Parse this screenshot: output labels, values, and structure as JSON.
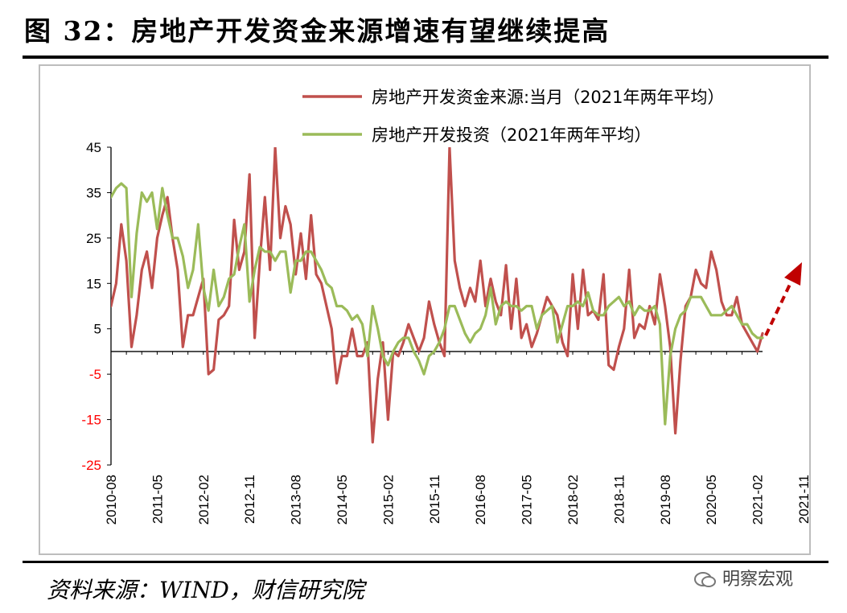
{
  "figure": {
    "title": "图 32：房地产开发资金来源增速有望继续提高",
    "source": "资料来源：WIND，财信研究院",
    "watermark": "明察宏观"
  },
  "chart_data": {
    "type": "line",
    "ylim": [
      -25,
      45
    ],
    "yticks": [
      45,
      35,
      25,
      15,
      5,
      -5,
      -15,
      -25
    ],
    "negative_tick_color": "#ff0000",
    "xticks": [
      "2010-08",
      "2011-05",
      "2012-02",
      "2012-11",
      "2013-08",
      "2014-05",
      "2015-02",
      "2015-11",
      "2016-08",
      "2017-05",
      "2018-02",
      "2018-11",
      "2019-08",
      "2020-05",
      "2021-02",
      "2021-11"
    ],
    "legend_position": "top-right",
    "grid": false,
    "series": [
      {
        "name": "房地产开发资金来源:当月（2021年两年平均）",
        "color": "#c0504d",
        "values": [
          10,
          15,
          28,
          20,
          1,
          8,
          18,
          22,
          14,
          25,
          30,
          34,
          25,
          18,
          1,
          8,
          8,
          12,
          16,
          -5,
          -4,
          7,
          8,
          10,
          29,
          18,
          22,
          39,
          3,
          20,
          34,
          18,
          45,
          25,
          32,
          28,
          17,
          26,
          16,
          30,
          17,
          15,
          10,
          5,
          -7,
          -1,
          -1,
          5,
          -1,
          -1,
          2,
          -20,
          -6,
          2,
          -15,
          0,
          -1,
          2,
          6,
          3,
          0,
          3,
          11,
          6,
          2,
          -1,
          45,
          20,
          14,
          10,
          14,
          11,
          20,
          10,
          16,
          11,
          8,
          19,
          5,
          16,
          3,
          6,
          1,
          4,
          8,
          12,
          10,
          8,
          2,
          -1,
          17,
          5,
          18,
          8,
          9,
          7,
          17,
          -3,
          -4,
          1,
          5,
          18,
          3,
          6,
          5,
          10,
          6,
          17,
          10,
          1,
          -18,
          -2,
          10,
          12,
          18,
          15,
          14,
          22,
          18,
          11,
          8,
          8,
          12,
          6,
          4,
          2,
          0,
          4
        ]
      },
      {
        "name": "房地产开发投资（2021年两年平均）",
        "color": "#9bbb59",
        "values": [
          34,
          36,
          37,
          36,
          12,
          26,
          35,
          33,
          35,
          27,
          36,
          30,
          25,
          25,
          21,
          14,
          18,
          28,
          14,
          9,
          18,
          10,
          12,
          16,
          17,
          23,
          28,
          11,
          18,
          23,
          22,
          22,
          20,
          22,
          22,
          13,
          20,
          20,
          22,
          22,
          20,
          18,
          15,
          14,
          10,
          10,
          9,
          7,
          8,
          6,
          -1,
          10,
          5,
          -1,
          -3,
          0,
          2,
          3,
          3,
          0,
          -2,
          -5,
          -1,
          0,
          2,
          5,
          10,
          10,
          7,
          4,
          2,
          4,
          5,
          8,
          14,
          6,
          10,
          11,
          10,
          10,
          9,
          10,
          10,
          5,
          8,
          9,
          10,
          2,
          6,
          10,
          10,
          11,
          10,
          13,
          9,
          8,
          8,
          10,
          11,
          12,
          10,
          11,
          8,
          10,
          9,
          9,
          10,
          6,
          -16,
          -1,
          5,
          8,
          9,
          12,
          12,
          12,
          10,
          8,
          8,
          8,
          9,
          10,
          8,
          6,
          6,
          4,
          3,
          3
        ]
      }
    ]
  }
}
